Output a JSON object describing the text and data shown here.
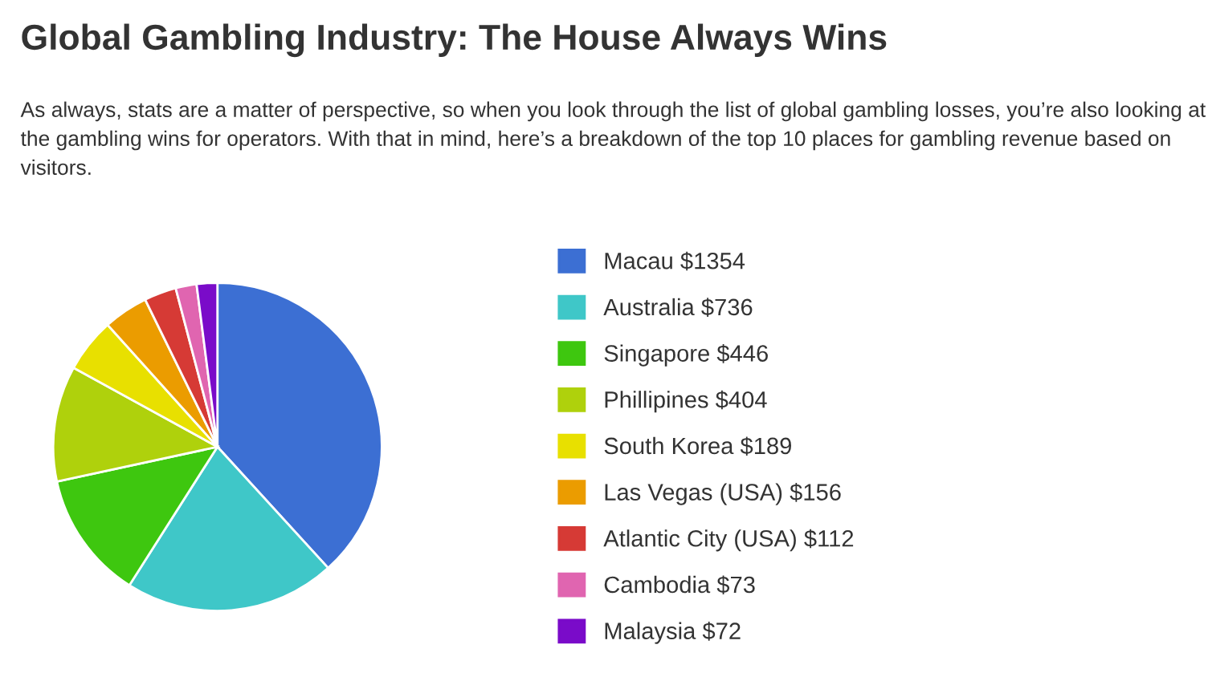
{
  "chart_data": {
    "type": "pie",
    "title": "Global Gambling Industry: The House Always Wins",
    "subtitle": "As always, stats are a matter of perspective, so when you look through the list of global gambling losses, you’re also looking at the gambling wins for operators. With that in mind, here’s a breakdown of the top 10 places for gambling revenue based on visitors.",
    "categories": [
      "Macau $1354",
      "Australia $736",
      "Singapore $446",
      "Phillipines $404",
      "South Korea $189",
      "Las Vegas (USA) $156",
      "Atlantic City (USA) $112",
      "Cambodia $73",
      "Malaysia $72"
    ],
    "values": [
      1354,
      736,
      446,
      404,
      189,
      156,
      112,
      73,
      72
    ],
    "colors": [
      "#3c6fd3",
      "#3fc7c8",
      "#3ec70f",
      "#afd10c",
      "#e8e000",
      "#eb9c00",
      "#d63a35",
      "#e065b0",
      "#7a0bc9"
    ],
    "legend": "right"
  }
}
